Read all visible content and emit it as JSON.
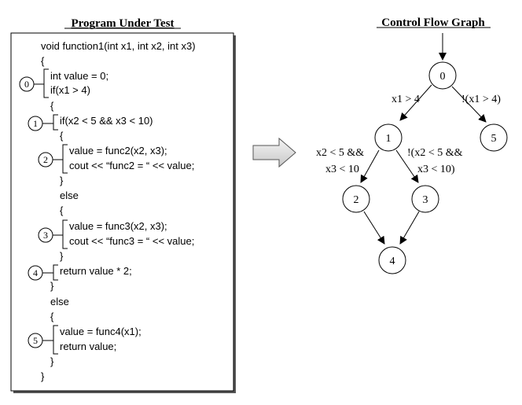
{
  "program": {
    "title": "Program Under Test",
    "code": [
      "void function1(int x1, int x2, int x3)",
      "{",
      "int value = 0;",
      "if(x1 > 4)",
      "{",
      "if(x2 < 5 && x3 < 10)",
      "{",
      "value = func2(x2, x3);",
      "cout << “func2 = “ << value;",
      "}",
      "else",
      "{",
      "value = func3(x2, x3);",
      "cout << “func3 =  “ << value;",
      "}",
      "return value * 2;",
      "}",
      "else",
      "{",
      "value = func4(x1);",
      "return value;",
      "}",
      "}"
    ],
    "markers": [
      "0",
      "1",
      "2",
      "3",
      "4",
      "5"
    ]
  },
  "graph": {
    "title": "Control Flow Graph",
    "nodes": [
      "0",
      "1",
      "2",
      "3",
      "4",
      "5"
    ],
    "edge_labels": {
      "e01": "x1 > 4",
      "e05": "!(x1 > 4)",
      "e12_line1": "x2 < 5 &&",
      "e12_line2": "x3 < 10",
      "e13_line1": "!(x2 < 5 &&",
      "e13_line2": "x3 < 10)"
    }
  }
}
